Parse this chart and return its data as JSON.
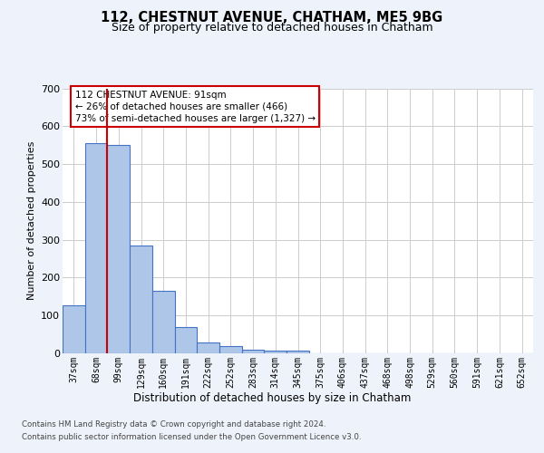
{
  "title": "112, CHESTNUT AVENUE, CHATHAM, ME5 9BG",
  "subtitle": "Size of property relative to detached houses in Chatham",
  "xlabel": "Distribution of detached houses by size in Chatham",
  "ylabel": "Number of detached properties",
  "categories": [
    "37sqm",
    "68sqm",
    "99sqm",
    "129sqm",
    "160sqm",
    "191sqm",
    "222sqm",
    "252sqm",
    "283sqm",
    "314sqm",
    "345sqm",
    "375sqm",
    "406sqm",
    "437sqm",
    "468sqm",
    "498sqm",
    "529sqm",
    "560sqm",
    "591sqm",
    "621sqm",
    "652sqm"
  ],
  "bar_heights": [
    127,
    556,
    550,
    285,
    165,
    70,
    28,
    18,
    10,
    6,
    6,
    0,
    0,
    0,
    0,
    0,
    0,
    0,
    0,
    0,
    0
  ],
  "ylim": [
    0,
    700
  ],
  "yticks": [
    0,
    100,
    200,
    300,
    400,
    500,
    600,
    700
  ],
  "bar_color": "#aec6e8",
  "bar_edge_color": "#4472c4",
  "vline_x": 2.0,
  "vline_color": "#cc0000",
  "annotation_text": "112 CHESTNUT AVENUE: 91sqm\n← 26% of detached houses are smaller (466)\n73% of semi-detached houses are larger (1,327) →",
  "annotation_box_color": "#cc0000",
  "footer_line1": "Contains HM Land Registry data © Crown copyright and database right 2024.",
  "footer_line2": "Contains public sector information licensed under the Open Government Licence v3.0.",
  "background_color": "#eef2fa",
  "plot_bg_color": "#ffffff",
  "grid_color": "#cccccc"
}
